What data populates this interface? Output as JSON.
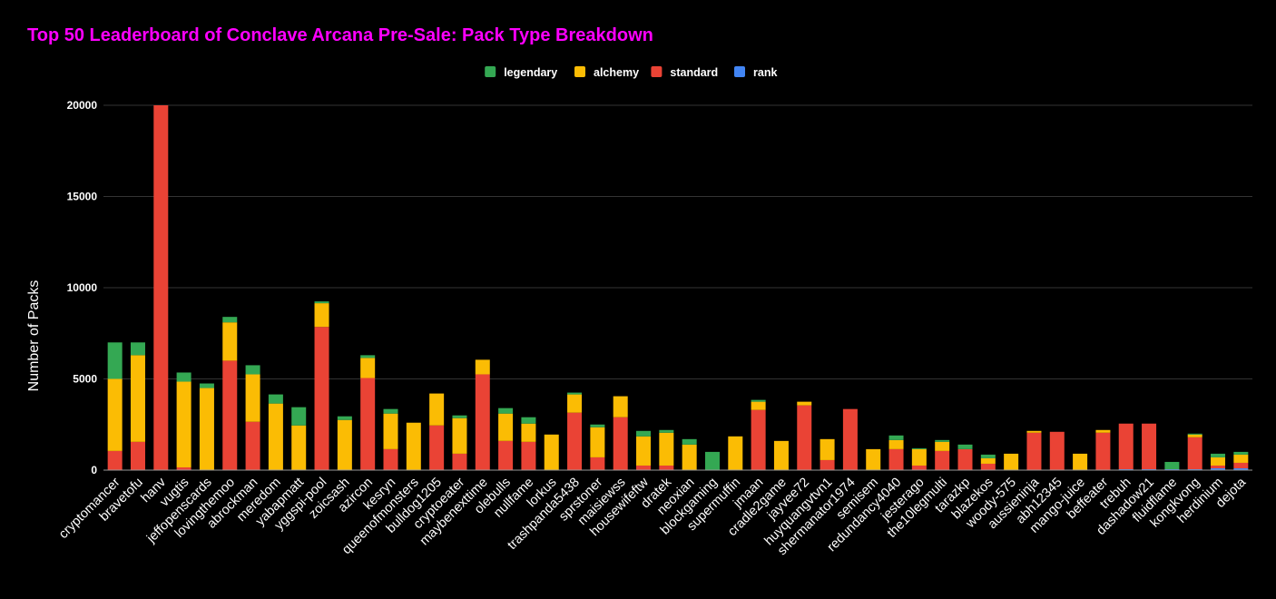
{
  "chart_data": {
    "type": "bar",
    "stacked": true,
    "title": "Top 50 Leaderboard of Conclave Arcana Pre-Sale: Pack Type Breakdown",
    "ylabel": "Number of Packs",
    "xlabel": "",
    "ylim": [
      0,
      20000
    ],
    "yticks": [
      0,
      5000,
      10000,
      15000,
      20000
    ],
    "grid": true,
    "legend_position": "top",
    "categories": [
      "cryptomancer",
      "bravetofu",
      "hanv",
      "vugtis",
      "jeffopenscards",
      "lovingthemoo",
      "abrockman",
      "meredom",
      "yabapmatt",
      "yggspi-pool",
      "zoicsash",
      "azircon",
      "kesryn",
      "queenofmonsters",
      "bulldog1205",
      "cryptoeater",
      "maybenexttime",
      "olebulls",
      "nullfame",
      "lorkus",
      "trashpanda5438",
      "sprstoner",
      "maisiewss",
      "housewifeftw",
      "dratek",
      "neoxian",
      "blockgaming",
      "supermuffin",
      "jmaan",
      "cradle2game",
      "jayvee72",
      "huyquangvtvn1",
      "shermanator1974",
      "semisem",
      "redundancy4040",
      "jesterago",
      "the10legmulti",
      "tarazkp",
      "blazekos",
      "woody-575",
      "aussieninja",
      "abh12345",
      "mango-juice",
      "beffeater",
      "trebuh",
      "dashadow21",
      "fluidflame",
      "kongkvong",
      "herdinium",
      "dejota"
    ],
    "series": [
      {
        "name": "rank",
        "color": "#4285f4",
        "values": [
          0,
          0,
          0,
          0,
          0,
          0,
          0,
          0,
          0,
          0,
          0,
          0,
          0,
          0,
          0,
          0,
          0,
          0,
          0,
          0,
          0,
          0,
          0,
          0,
          0,
          0,
          0,
          0,
          0,
          0,
          0,
          0,
          0,
          0,
          0,
          0,
          0,
          0,
          0,
          0,
          0,
          0,
          0,
          0,
          50,
          50,
          50,
          50,
          100,
          100
        ]
      },
      {
        "name": "standard",
        "color": "#ea4335",
        "values": [
          1050,
          1550,
          20000,
          150,
          0,
          6000,
          2650,
          0,
          0,
          7850,
          0,
          5050,
          1150,
          0,
          2450,
          900,
          5250,
          1600,
          1550,
          0,
          3150,
          700,
          2900,
          250,
          250,
          0,
          0,
          0,
          3300,
          0,
          3550,
          550,
          3350,
          0,
          1150,
          250,
          1050,
          1150,
          350,
          0,
          2050,
          2100,
          0,
          2050,
          2500,
          2500,
          0,
          1750,
          150,
          300
        ]
      },
      {
        "name": "alchemy",
        "color": "#fbbc04",
        "values": [
          3950,
          4750,
          0,
          4700,
          4500,
          2100,
          2600,
          3650,
          2450,
          1300,
          2750,
          1100,
          1950,
          2600,
          1750,
          1950,
          800,
          1500,
          1000,
          1950,
          1000,
          1650,
          1150,
          1600,
          1800,
          1400,
          0,
          1850,
          450,
          1600,
          200,
          1150,
          0,
          1150,
          500,
          900,
          500,
          0,
          300,
          900,
          100,
          0,
          900,
          150,
          0,
          0,
          0,
          150,
          450,
          450
        ]
      },
      {
        "name": "legendary",
        "color": "#34a853",
        "values": [
          2000,
          700,
          0,
          500,
          250,
          300,
          500,
          500,
          1000,
          100,
          200,
          150,
          250,
          0,
          0,
          150,
          0,
          300,
          350,
          0,
          100,
          150,
          0,
          300,
          150,
          300,
          1000,
          0,
          100,
          0,
          0,
          0,
          0,
          0,
          250,
          50,
          100,
          250,
          200,
          0,
          0,
          0,
          0,
          0,
          0,
          0,
          400,
          50,
          200,
          150
        ]
      }
    ]
  },
  "legend_order": [
    "legendary",
    "alchemy",
    "standard",
    "rank"
  ],
  "colors": {
    "background": "#000000",
    "title": "#ff00ff",
    "grid": "#333333",
    "text": "#ffffff"
  }
}
